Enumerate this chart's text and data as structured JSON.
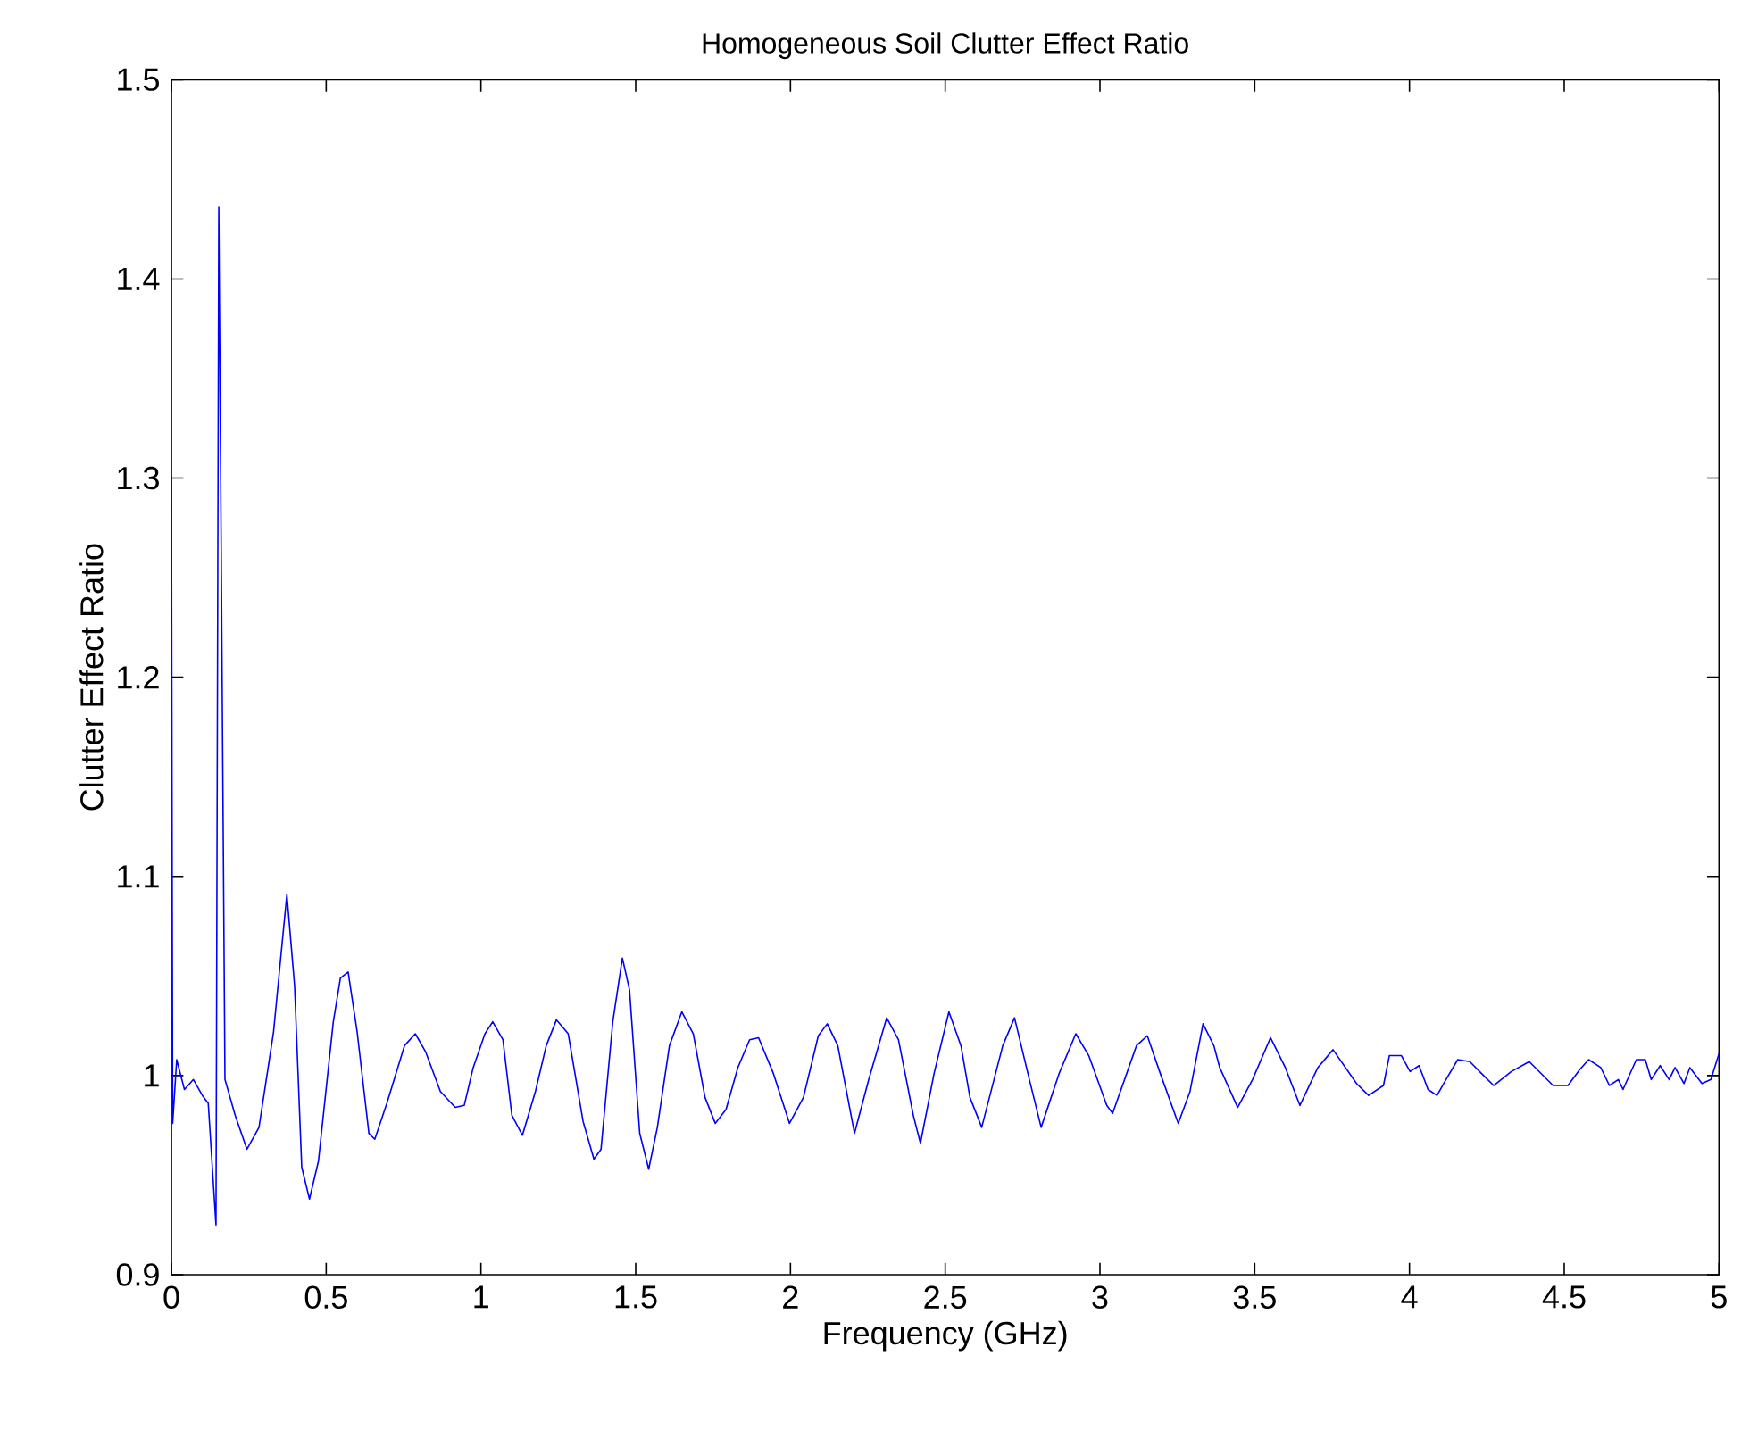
{
  "chart_data": {
    "type": "line",
    "title": "Homogeneous Soil Clutter Effect Ratio",
    "xlabel": "Frequency (GHz)",
    "ylabel": "Clutter Effect Ratio",
    "color": "#0000ff",
    "xlim": [
      0,
      5
    ],
    "ylim": [
      0.9,
      1.5
    ],
    "xticks": [
      0,
      0.5,
      1,
      1.5,
      2,
      2.5,
      3,
      3.5,
      4,
      4.5,
      5
    ],
    "yticks": [
      0.9,
      1,
      1.1,
      1.2,
      1.3,
      1.4,
      1.5
    ],
    "x": [
      0,
      0.004,
      0.017,
      0.042,
      0.071,
      0.1,
      0.119,
      0.144,
      0.153,
      0.173,
      0.206,
      0.244,
      0.283,
      0.33,
      0.373,
      0.398,
      0.421,
      0.446,
      0.475,
      0.523,
      0.546,
      0.571,
      0.6,
      0.638,
      0.657,
      0.696,
      0.753,
      0.788,
      0.821,
      0.869,
      0.917,
      0.946,
      0.975,
      1.013,
      1.038,
      1.071,
      1.1,
      1.134,
      1.176,
      1.211,
      1.244,
      1.282,
      1.33,
      1.365,
      1.388,
      1.426,
      1.457,
      1.48,
      1.513,
      1.542,
      1.57,
      1.609,
      1.649,
      1.686,
      1.724,
      1.757,
      1.792,
      1.83,
      1.868,
      1.897,
      1.945,
      1.997,
      2.042,
      2.09,
      2.119,
      2.153,
      2.207,
      2.253,
      2.311,
      2.349,
      2.397,
      2.42,
      2.464,
      2.512,
      2.551,
      2.58,
      2.618,
      2.686,
      2.724,
      2.772,
      2.81,
      2.868,
      2.922,
      2.964,
      3.022,
      3.041,
      3.118,
      3.153,
      3.195,
      3.253,
      3.291,
      3.333,
      3.368,
      3.387,
      3.445,
      3.493,
      3.551,
      3.599,
      3.646,
      3.704,
      3.753,
      3.829,
      3.868,
      3.916,
      3.935,
      3.974,
      4.002,
      4.031,
      4.06,
      4.089,
      4.118,
      4.156,
      4.195,
      4.233,
      4.272,
      4.329,
      4.387,
      4.464,
      4.512,
      4.55,
      4.579,
      4.618,
      4.646,
      4.675,
      4.69,
      4.733,
      4.762,
      4.781,
      4.81,
      4.839,
      4.858,
      4.887,
      4.906,
      4.945,
      4.974,
      5
    ],
    "values": [
      1.3,
      0.976,
      1.008,
      0.993,
      0.998,
      0.99,
      0.986,
      0.925,
      1.436,
      0.998,
      0.98,
      0.963,
      0.974,
      1.022,
      1.091,
      1.045,
      0.954,
      0.938,
      0.957,
      1.027,
      1.049,
      1.052,
      1.022,
      0.971,
      0.968,
      0.986,
      1.015,
      1.021,
      1.012,
      0.992,
      0.984,
      0.985,
      1.004,
      1.021,
      1.027,
      1.018,
      0.98,
      0.97,
      0.992,
      1.015,
      1.028,
      1.021,
      0.977,
      0.958,
      0.963,
      1.027,
      1.059,
      1.043,
      0.971,
      0.953,
      0.974,
      1.015,
      1.032,
      1.021,
      0.989,
      0.976,
      0.983,
      1.004,
      1.018,
      1.019,
      1.001,
      0.976,
      0.989,
      1.02,
      1.026,
      1.015,
      0.971,
      0.998,
      1.029,
      1.018,
      0.98,
      0.966,
      1.001,
      1.032,
      1.015,
      0.989,
      0.974,
      1.015,
      1.029,
      0.998,
      0.974,
      1.001,
      1.021,
      1.01,
      0.985,
      0.981,
      1.015,
      1.02,
      1.001,
      0.976,
      0.992,
      1.026,
      1.015,
      1.004,
      0.984,
      0.998,
      1.019,
      1.004,
      0.985,
      1.004,
      1.013,
      0.996,
      0.99,
      0.995,
      1.01,
      1.01,
      1.002,
      1.005,
      0.993,
      0.99,
      0.998,
      1.008,
      1.007,
      1.001,
      0.995,
      1.002,
      1.007,
      0.995,
      0.995,
      1.003,
      1.008,
      1.004,
      0.995,
      0.998,
      0.993,
      1.008,
      1.008,
      0.998,
      1.005,
      0.998,
      1.004,
      0.996,
      1.004,
      0.996,
      0.998,
      1.011
    ]
  }
}
